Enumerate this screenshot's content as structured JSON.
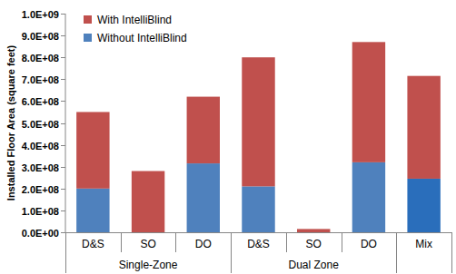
{
  "chart_data": {
    "type": "bar",
    "stacked": true,
    "grid": false,
    "legend": "top-left",
    "y_label": "Installed Floor Area (square feet)",
    "categories": [
      "D&S",
      "SO",
      "DO",
      "D&S",
      "SO",
      "DO",
      "Mix"
    ],
    "category_groups": [
      "Single-Zone",
      "Single-Zone",
      "Single-Zone",
      "Dual Zone",
      "Dual Zone",
      "Dual Zone",
      null
    ],
    "series": [
      {
        "name": "Without IntelliBlind",
        "color": "#4f81bd",
        "colors": [
          "#4f81bd",
          "#4f81bd",
          "#4f81bd",
          "#4f81bd",
          "#4f81bd",
          "#4f81bd",
          "#2a6ebb"
        ],
        "values": [
          200000000,
          0,
          315000000,
          210000000,
          0,
          320000000,
          245000000
        ]
      },
      {
        "name": "With IntelliBlind",
        "color": "#c0504d",
        "values": [
          350000000,
          280000000,
          305000000,
          590000000,
          15000000,
          550000000,
          470000000
        ]
      }
    ],
    "ylim": [
      0,
      1000000000
    ],
    "yticks": [
      {
        "value": 0,
        "label": "0.0E+00"
      },
      {
        "value": 100000000,
        "label": "1.0E+08"
      },
      {
        "value": 200000000,
        "label": "2.0E+08"
      },
      {
        "value": 300000000,
        "label": "3.0E+08"
      },
      {
        "value": 400000000,
        "label": "4.0E+08"
      },
      {
        "value": 500000000,
        "label": "5.0E+08"
      },
      {
        "value": 600000000,
        "label": "6.0E+08"
      },
      {
        "value": 700000000,
        "label": "7.0E+08"
      },
      {
        "value": 800000000,
        "label": "8.0E+08"
      },
      {
        "value": 900000000,
        "label": "9.0E+08"
      },
      {
        "value": 1000000000,
        "label": "1.0E+09"
      }
    ]
  }
}
